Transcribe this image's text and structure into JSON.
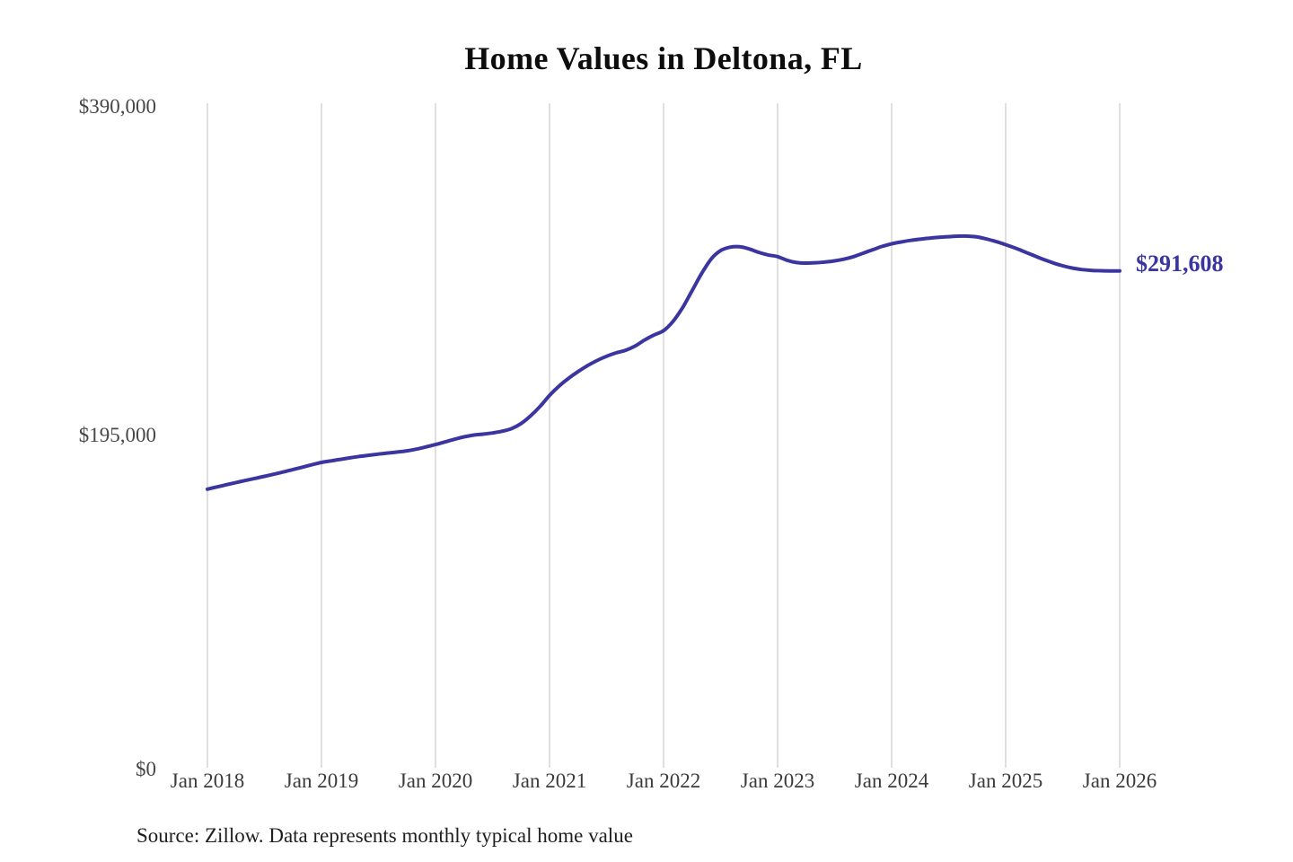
{
  "title": "Home Values in Deltona, FL",
  "end_label": "$291,608",
  "source_note": "Source: Zillow. Data represents monthly typical home value",
  "colors": {
    "background": "#ffffff",
    "line": "#3b35a0",
    "grid": "#cacaca",
    "title_text": "#0d0d0d",
    "y_axis_text": "#474747",
    "x_axis_text": "#3b3b3b",
    "end_label_text": "#3b35a0",
    "source_text": "#1f1f1f"
  },
  "y_axis": {
    "ticks": [
      "$390,000",
      "$195,000",
      "$0"
    ]
  },
  "x_axis": {
    "ticks": [
      "Jan 2018",
      "Jan 2019",
      "Jan 2020",
      "Jan 2021",
      "Jan 2022",
      "Jan 2023",
      "Jan 2024",
      "Jan 2025",
      "Jan 2026"
    ]
  },
  "chart_data": {
    "type": "line",
    "title": "Home Values in Deltona, FL",
    "series_name": "Monthly typical home value (USD)",
    "x_start": "Jan 2018",
    "x_end": "Jan 2026",
    "x_interval": "monthly",
    "ylim": [
      0,
      390000
    ],
    "y_tick_values": [
      0,
      195000,
      390000
    ],
    "y_tick_labels": [
      "$0",
      "$195,000",
      "$390,000"
    ],
    "x_tick_labels": [
      "Jan 2018",
      "Jan 2019",
      "Jan 2020",
      "Jan 2021",
      "Jan 2022",
      "Jan 2023",
      "Jan 2024",
      "Jan 2025",
      "Jan 2026"
    ],
    "grid": "vertical-only",
    "legend": "none",
    "final_value": 291608,
    "final_label": "$291,608",
    "values": [
      163500,
      164800,
      166100,
      167400,
      168600,
      169800,
      171000,
      172300,
      173600,
      175000,
      176400,
      177800,
      179200,
      180100,
      181000,
      181900,
      182700,
      183400,
      184100,
      184700,
      185300,
      186000,
      187000,
      188300,
      189700,
      191200,
      192800,
      194200,
      195200,
      195800,
      196500,
      197500,
      199000,
      202000,
      206500,
      212000,
      218500,
      224000,
      228500,
      232500,
      236000,
      239000,
      241500,
      243500,
      245000,
      247500,
      251000,
      254000,
      256500,
      262000,
      270000,
      280000,
      290000,
      298500,
      303500,
      305500,
      305800,
      304500,
      302500,
      301000,
      300000,
      297800,
      296500,
      296200,
      296400,
      296800,
      297500,
      298500,
      300000,
      302000,
      304000,
      306000,
      307500,
      308600,
      309500,
      310200,
      310800,
      311300,
      311700,
      312000,
      312000,
      311500,
      310300,
      308800,
      307000,
      305000,
      302800,
      300500,
      298300,
      296300,
      294600,
      293300,
      292400,
      291900,
      291700,
      291600,
      291608
    ]
  }
}
